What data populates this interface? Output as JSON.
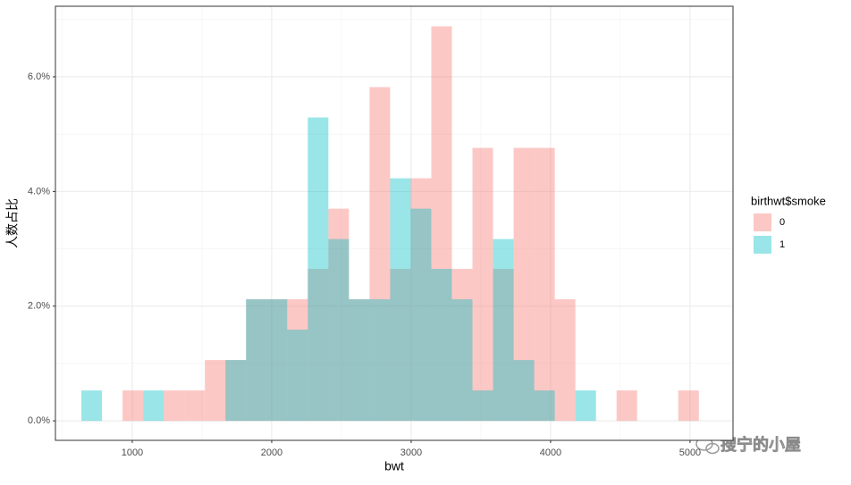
{
  "chart_data": {
    "type": "histogram",
    "x_label": "bwt",
    "y_label": "人数占比",
    "legend_title": "birthwt$smoke",
    "bins": [
      635.2,
      782.8,
      930.4,
      1078.0,
      1225.6,
      1373.2,
      1520.8,
      1668.4,
      1816.0,
      1963.6,
      2111.2,
      2258.8,
      2406.4,
      2554.0,
      2701.6,
      2849.2,
      2996.8,
      3144.4,
      3292.0,
      3439.6,
      3587.2,
      3734.8,
      3882.4,
      4030.0,
      4177.6,
      4325.2,
      4472.8,
      4620.4,
      4768.0,
      4915.6,
      5063.2
    ],
    "series": [
      {
        "name": "0",
        "color": "#F8766D",
        "values": [
          0,
          0,
          0.53,
          0,
          0.53,
          0.53,
          1.06,
          1.06,
          2.12,
          2.12,
          2.12,
          2.65,
          3.7,
          2.12,
          5.82,
          2.65,
          4.23,
          6.88,
          2.65,
          4.76,
          2.65,
          4.76,
          4.76,
          2.12,
          0,
          0,
          0.53,
          0,
          0,
          0.53
        ]
      },
      {
        "name": "1",
        "color": "#00BFC4",
        "values": [
          0.53,
          0,
          0,
          0.53,
          0,
          0,
          0,
          1.06,
          2.12,
          2.12,
          1.59,
          5.29,
          3.17,
          2.12,
          2.12,
          4.23,
          3.7,
          2.65,
          2.12,
          0.53,
          3.17,
          1.06,
          0.53,
          0,
          0.53,
          0,
          0,
          0,
          0,
          0
        ]
      }
    ],
    "alpha": 0.4,
    "xlim": [
      449,
      5308
    ],
    "xticks": [
      1000,
      2000,
      3000,
      4000,
      5000
    ],
    "ylim": [
      -0.34,
      7.23
    ],
    "yticks": [
      {
        "value": 0,
        "label": "0.0%"
      },
      {
        "value": 2,
        "label": "2.0%"
      },
      {
        "value": 4,
        "label": "4.0%"
      },
      {
        "value": 6,
        "label": "6.0%"
      }
    ],
    "grid": true,
    "minor_grid": true,
    "legend_position": "right"
  },
  "watermark": "搜宁的小屋"
}
